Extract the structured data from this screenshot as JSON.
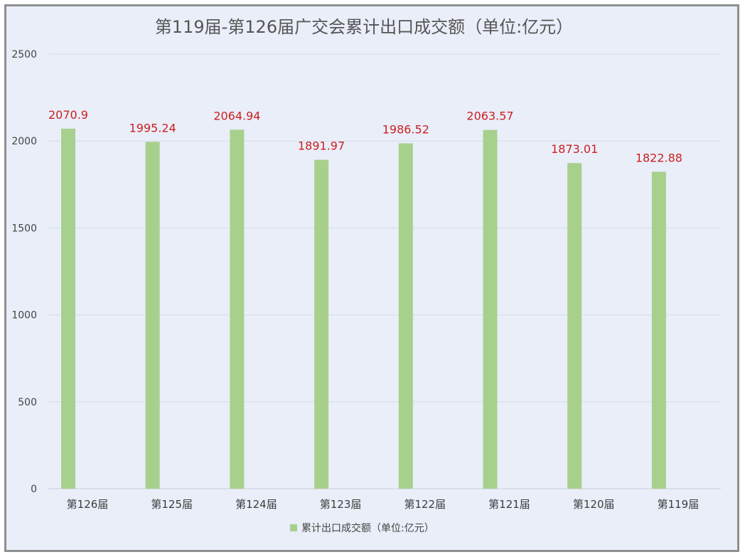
{
  "chart_data": {
    "type": "bar",
    "title": "第119届-第126届广交会累计出口成交额（单位:亿元）",
    "categories": [
      "第126届",
      "第125届",
      "第124届",
      "第123届",
      "第122届",
      "第121届",
      "第120届",
      "第119届"
    ],
    "series": [
      {
        "name": "累计出口成交额（单位:亿元）",
        "values": [
          2070.9,
          1995.24,
          2064.94,
          1891.97,
          1986.52,
          2063.57,
          1873.01,
          1822.88
        ],
        "labels": [
          "2070.9",
          "1995.24",
          "2064.94",
          "1891.97",
          "1986.52",
          "2063.57",
          "1873.01",
          "1822.88"
        ]
      }
    ],
    "yticks": [
      0,
      500,
      1000,
      1500,
      2000,
      2500
    ],
    "ylim": [
      0,
      2500
    ],
    "xlabel": "",
    "ylabel": "",
    "grid": true,
    "legend_position": "bottom",
    "colors": {
      "bar": "#a8d08d",
      "data_label": "#cc1f1f",
      "gridline": "#d6dde8",
      "plot_background": "#e9eef9",
      "frame_border": "#8f8f8f"
    }
  }
}
